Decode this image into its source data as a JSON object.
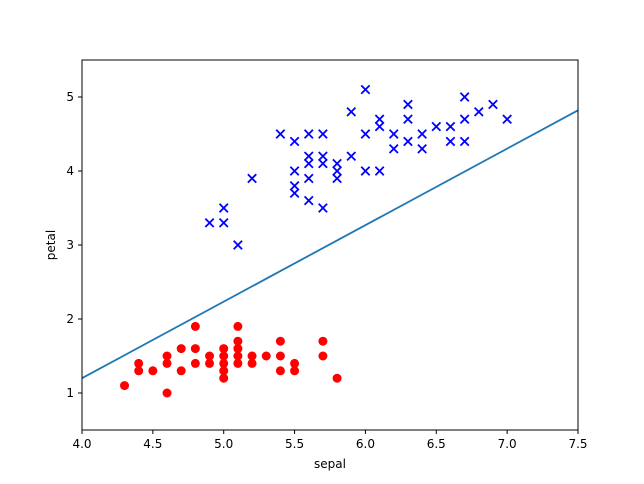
{
  "chart_data": {
    "type": "scatter",
    "xlabel": "sepal",
    "ylabel": "petal",
    "xlim": [
      4.0,
      7.5
    ],
    "ylim": [
      0.5,
      5.5
    ],
    "xticks": [
      4.0,
      4.5,
      5.0,
      5.5,
      6.0,
      6.5,
      7.0,
      7.5
    ],
    "xtick_labels": [
      "4.0",
      "4.5",
      "5.0",
      "5.5",
      "6.0",
      "6.5",
      "7.0",
      "7.5"
    ],
    "yticks": [
      1,
      2,
      3,
      4,
      5
    ],
    "ytick_labels": [
      "1",
      "2",
      "3",
      "4",
      "5"
    ],
    "grid": false,
    "series": [
      {
        "marker": "circle",
        "color": "#ff0000",
        "points": [
          [
            4.3,
            1.1
          ],
          [
            4.4,
            1.3
          ],
          [
            4.4,
            1.4
          ],
          [
            4.5,
            1.3
          ],
          [
            4.6,
            1.0
          ],
          [
            4.6,
            1.4
          ],
          [
            4.6,
            1.5
          ],
          [
            4.7,
            1.3
          ],
          [
            4.7,
            1.6
          ],
          [
            4.8,
            1.4
          ],
          [
            4.8,
            1.6
          ],
          [
            4.8,
            1.9
          ],
          [
            4.9,
            1.4
          ],
          [
            4.9,
            1.5
          ],
          [
            5.0,
            1.2
          ],
          [
            5.0,
            1.3
          ],
          [
            5.0,
            1.4
          ],
          [
            5.0,
            1.5
          ],
          [
            5.0,
            1.6
          ],
          [
            5.1,
            1.4
          ],
          [
            5.1,
            1.5
          ],
          [
            5.1,
            1.6
          ],
          [
            5.1,
            1.7
          ],
          [
            5.1,
            1.9
          ],
          [
            5.2,
            1.4
          ],
          [
            5.2,
            1.5
          ],
          [
            5.3,
            1.5
          ],
          [
            5.4,
            1.3
          ],
          [
            5.4,
            1.5
          ],
          [
            5.4,
            1.7
          ],
          [
            5.5,
            1.3
          ],
          [
            5.5,
            1.4
          ],
          [
            5.7,
            1.5
          ],
          [
            5.7,
            1.7
          ],
          [
            5.8,
            1.2
          ]
        ]
      },
      {
        "marker": "x",
        "color": "#0000ff",
        "points": [
          [
            4.9,
            3.3
          ],
          [
            5.0,
            3.3
          ],
          [
            5.0,
            3.5
          ],
          [
            5.1,
            3.0
          ],
          [
            5.2,
            3.9
          ],
          [
            5.4,
            4.5
          ],
          [
            5.5,
            3.7
          ],
          [
            5.5,
            3.8
          ],
          [
            5.5,
            4.0
          ],
          [
            5.5,
            4.4
          ],
          [
            5.6,
            3.6
          ],
          [
            5.6,
            3.9
          ],
          [
            5.6,
            4.1
          ],
          [
            5.6,
            4.2
          ],
          [
            5.6,
            4.5
          ],
          [
            5.7,
            3.5
          ],
          [
            5.7,
            4.1
          ],
          [
            5.7,
            4.2
          ],
          [
            5.7,
            4.5
          ],
          [
            5.8,
            3.9
          ],
          [
            5.8,
            4.0
          ],
          [
            5.8,
            4.1
          ],
          [
            5.9,
            4.2
          ],
          [
            5.9,
            4.8
          ],
          [
            6.0,
            4.0
          ],
          [
            6.0,
            4.5
          ],
          [
            6.0,
            5.1
          ],
          [
            6.1,
            4.0
          ],
          [
            6.1,
            4.6
          ],
          [
            6.1,
            4.7
          ],
          [
            6.2,
            4.3
          ],
          [
            6.2,
            4.5
          ],
          [
            6.3,
            4.4
          ],
          [
            6.3,
            4.7
          ],
          [
            6.3,
            4.9
          ],
          [
            6.4,
            4.3
          ],
          [
            6.4,
            4.5
          ],
          [
            6.5,
            4.6
          ],
          [
            6.6,
            4.4
          ],
          [
            6.6,
            4.6
          ],
          [
            6.7,
            4.4
          ],
          [
            6.7,
            4.7
          ],
          [
            6.7,
            5.0
          ],
          [
            6.8,
            4.8
          ],
          [
            6.9,
            4.9
          ],
          [
            7.0,
            4.7
          ]
        ]
      }
    ],
    "line": {
      "color": "#1f77b4",
      "points": [
        [
          4.0,
          1.2
        ],
        [
          7.5,
          4.82
        ]
      ]
    }
  }
}
